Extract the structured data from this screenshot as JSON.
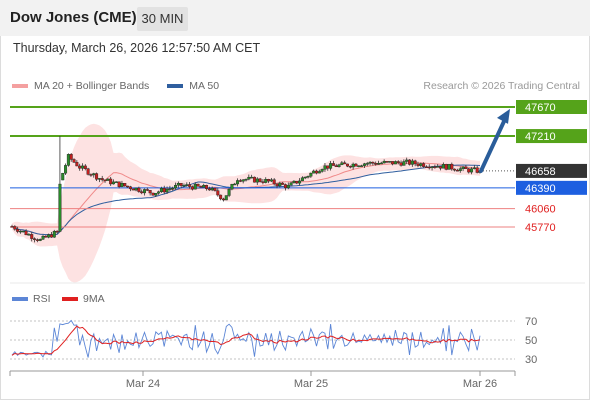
{
  "header": {
    "title": "Dow Jones (CME)",
    "timeframe": "30 MIN"
  },
  "timestamp": "Thursday, March 26, 2026 12:57:50 AM CET",
  "legend": {
    "bb": {
      "label": "MA 20 + Bollinger Bands",
      "color": "#f4a0a0"
    },
    "ma50": {
      "label": "MA 50",
      "color": "#2f5f9f"
    },
    "rsi": {
      "label": "RSI",
      "color": "#5c86d6"
    },
    "ma9": {
      "label": "9MA",
      "color": "#e02020"
    }
  },
  "copyright": "Research © 2026 Trading Central",
  "chart_data": {
    "type": "candlestick",
    "x_ticks": [
      "Mar 24",
      "Mar 25",
      "Mar 26"
    ],
    "ylim": [
      45390,
      47800
    ],
    "levels": [
      {
        "value": 47670,
        "label": "47670",
        "kind": "resistance",
        "color": "#55a31a"
      },
      {
        "value": 47210,
        "label": "47210",
        "kind": "resistance",
        "color": "#55a31a"
      },
      {
        "value": 46658,
        "label": "46658",
        "kind": "last",
        "color": "#333333"
      },
      {
        "value": 46390,
        "label": "46390",
        "kind": "pivot",
        "color": "#1d5fe0"
      },
      {
        "value": 46060,
        "label": "46060",
        "kind": "support",
        "color": "#ee8080"
      },
      {
        "value": 45770,
        "label": "45770",
        "kind": "support",
        "color": "#ee8080"
      }
    ],
    "target": {
      "from_price": 46658,
      "to_price": 47640,
      "color": "#2a5d9a"
    },
    "rsi": {
      "ticks": [
        70,
        50,
        30
      ]
    }
  }
}
